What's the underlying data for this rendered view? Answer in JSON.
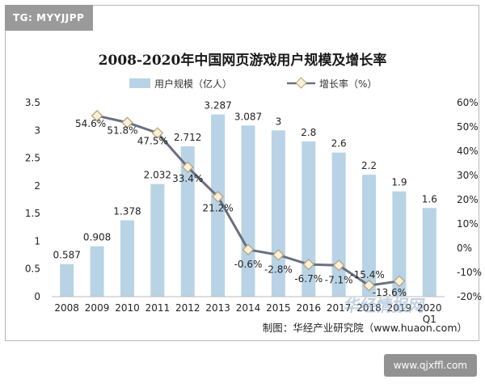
{
  "tag": "TG: MYYJJPP",
  "source": "制图：华经产业研究院（www.huaon.com）",
  "watermark_site": "www.qjxffl.com",
  "watermark_logo": "华经情报网",
  "colors": {
    "bar": "#b8d3e6",
    "line": "#6a7080",
    "marker_fill": "#fdf0d8",
    "marker_stroke": "#b9a27c"
  },
  "chart_data": {
    "type": "bar",
    "title": "2008-2020年中国网页游戏用户规模及增长率",
    "legend_position": "top-center",
    "categories": [
      "2008",
      "2009",
      "2010",
      "2011",
      "2012",
      "2013",
      "2014",
      "2015",
      "2016",
      "2017",
      "2018",
      "2019",
      "2020"
    ],
    "category_sublabels": {
      "2020": "Q1"
    },
    "series": [
      {
        "name": "用户规模（亿人）",
        "kind": "bar",
        "axis": "left",
        "values": [
          0.587,
          0.908,
          1.378,
          2.032,
          2.712,
          3.287,
          3.087,
          3,
          2.8,
          2.6,
          2.2,
          1.9,
          1.6
        ],
        "labels": [
          "0.587",
          "0.908",
          "1.378",
          "2.032",
          "2.712",
          "3.287",
          "3.087",
          "3",
          "2.8",
          "2.6",
          "2.2",
          "1.9",
          "1.6"
        ]
      },
      {
        "name": "增长率（%）",
        "kind": "line",
        "axis": "right",
        "values": [
          null,
          54.6,
          51.8,
          47.5,
          33.4,
          21.2,
          -0.6,
          -2.8,
          -6.7,
          -7.1,
          -15.4,
          -13.6,
          null
        ],
        "labels": [
          "",
          "54.6%",
          "51.8%",
          "47.5%",
          "33.4%",
          "21.2%",
          "-0.6%",
          "-2.8%",
          "-6.7%",
          "-7.1%",
          "-15.4%",
          "-13.6%",
          ""
        ]
      }
    ],
    "y_left": {
      "min": 0,
      "max": 3.5,
      "ticks": [
        "0",
        "0.5",
        "1",
        "1.5",
        "2",
        "2.5",
        "3",
        "3.5"
      ]
    },
    "y_right": {
      "min": -20,
      "max": 60,
      "ticks": [
        "-20%",
        "-10%",
        "0%",
        "10%",
        "20%",
        "30%",
        "40%",
        "50%",
        "60%"
      ]
    },
    "grid": false
  }
}
